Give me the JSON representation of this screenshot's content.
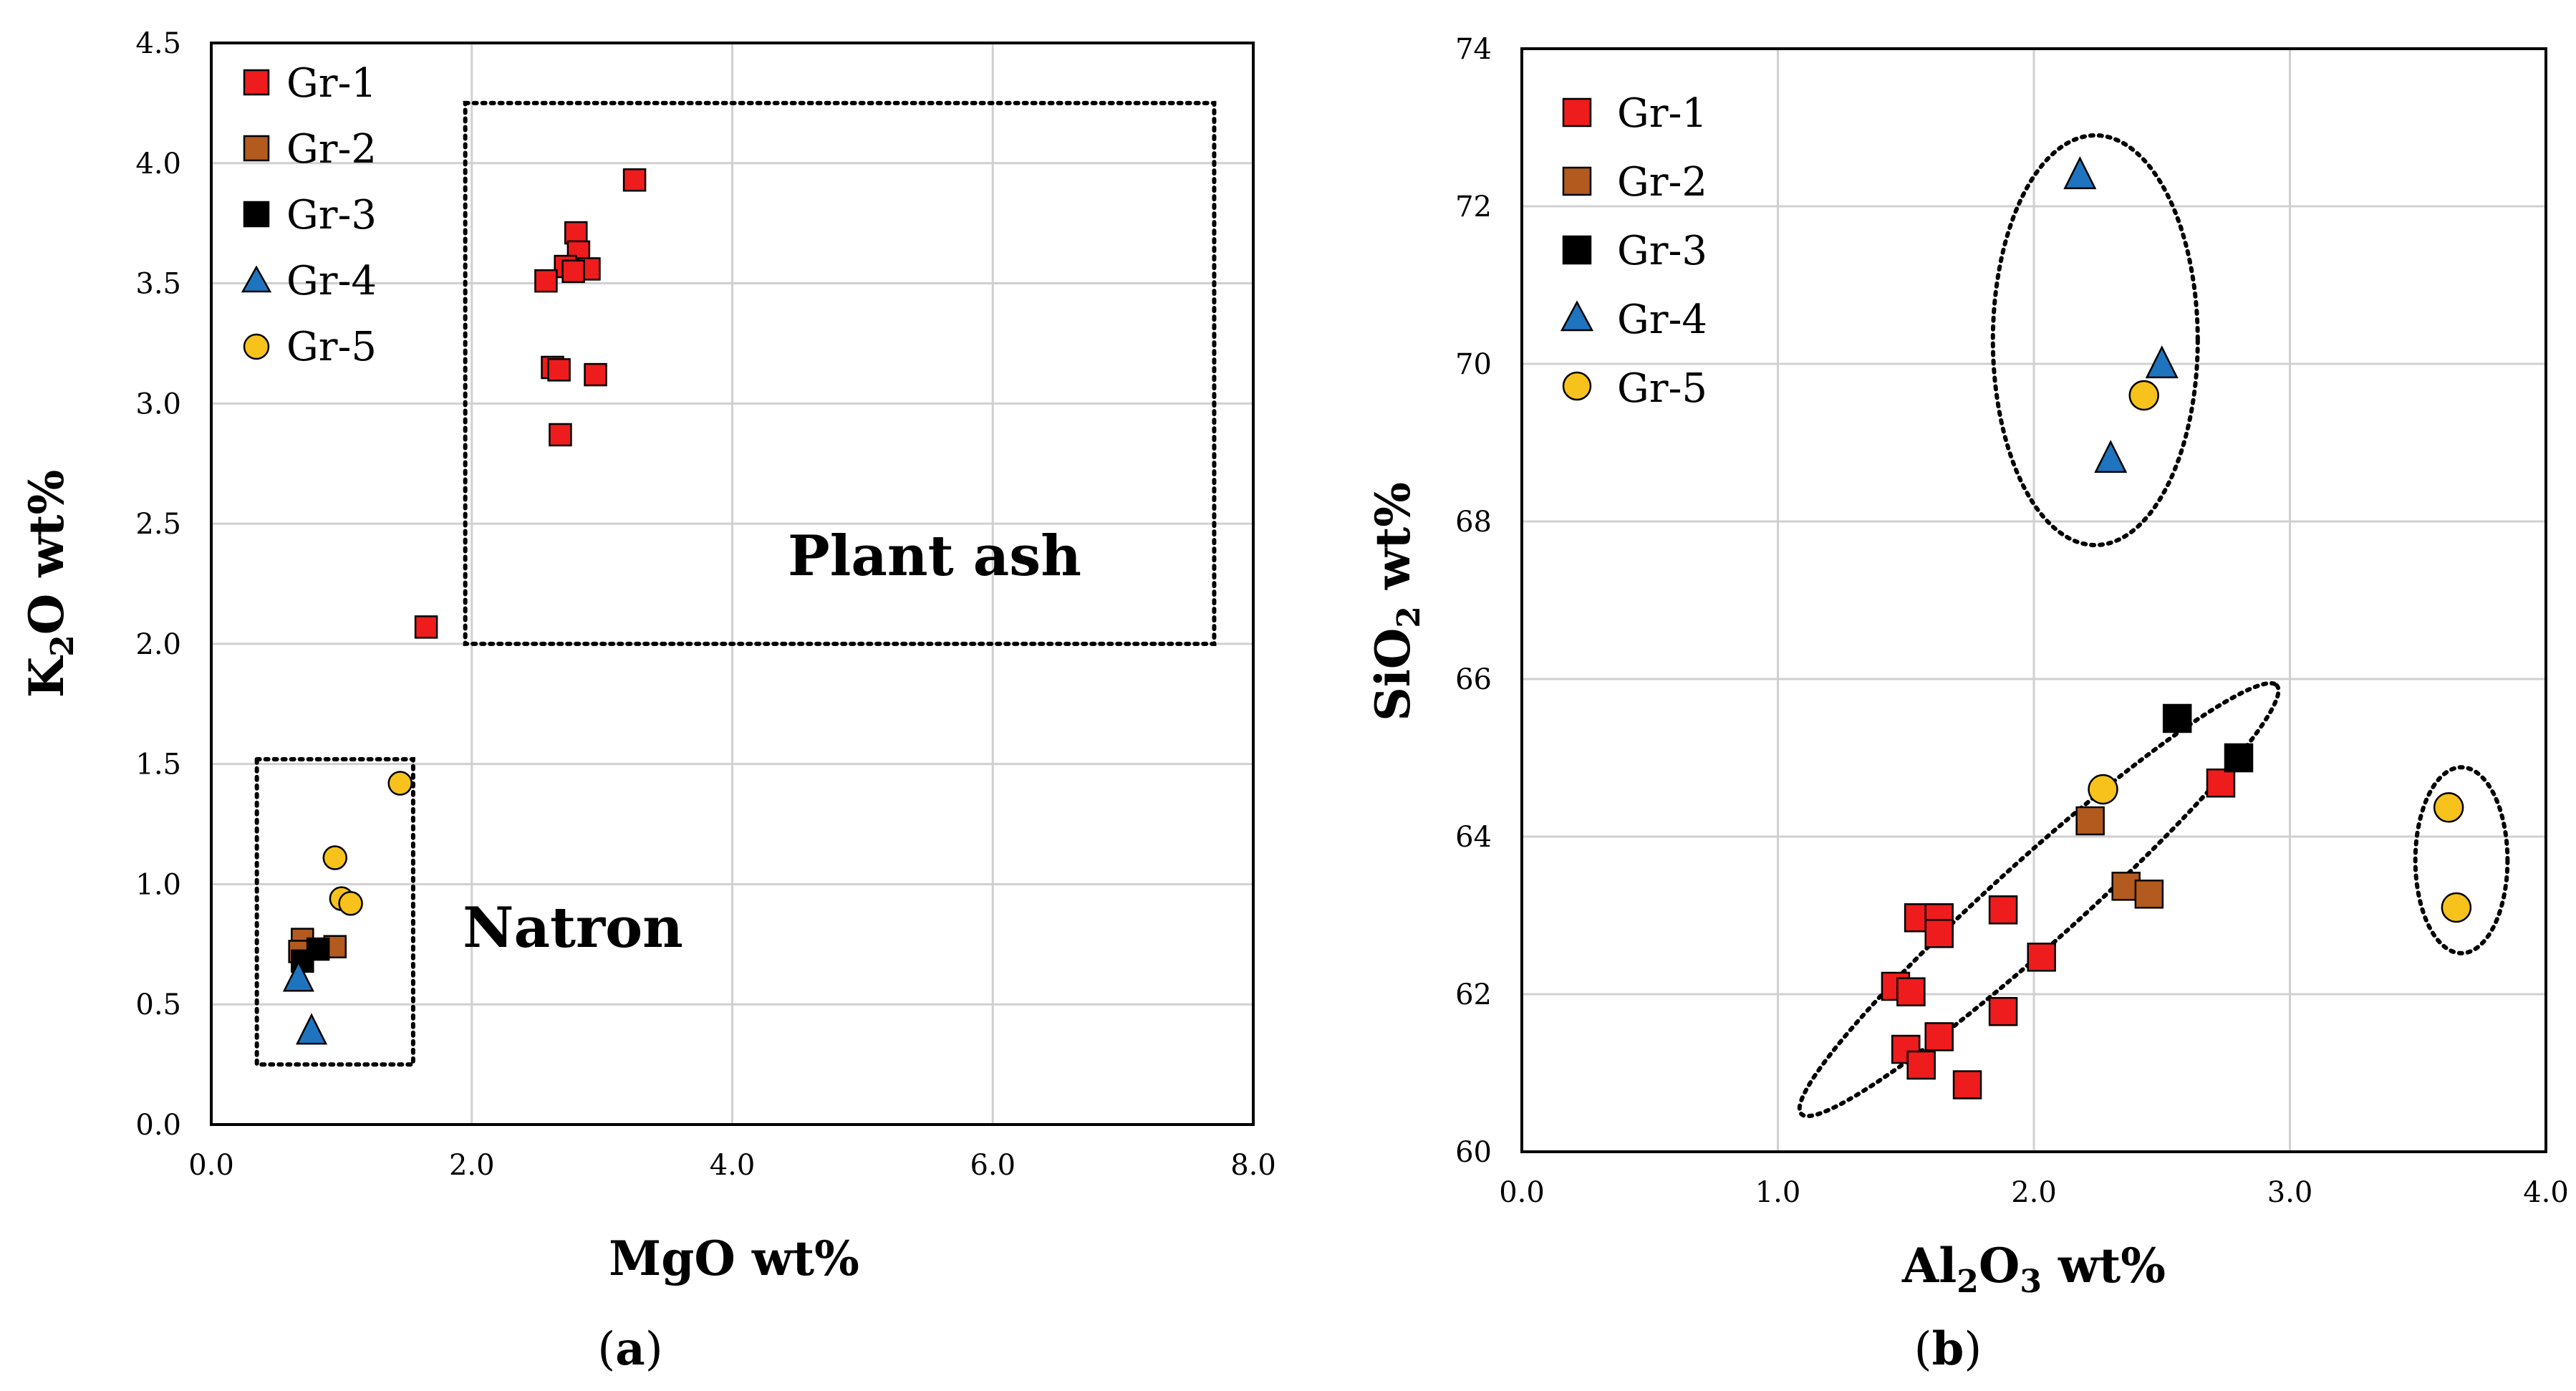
{
  "colors": {
    "Gr-1": "#ee1c1c",
    "Gr-2": "#b35a1f",
    "Gr-3": "#000000",
    "Gr-4": "#1f74bf",
    "Gr-5": "#f7c21b"
  },
  "legend_entries": [
    "Gr-1",
    "Gr-2",
    "Gr-3",
    "Gr-4",
    "Gr-5"
  ],
  "chart_data": [
    {
      "type": "scatter",
      "panel_label": "a",
      "xlabel": "MgO wt%",
      "ylabel": "K2O wt%",
      "xlim": [
        0,
        8
      ],
      "ylim": [
        0,
        4.5
      ],
      "xticks": [
        "0.0",
        "2.0",
        "4.0",
        "6.0",
        "8.0"
      ],
      "yticks": [
        "0.0",
        "0.5",
        "1.0",
        "1.5",
        "2.0",
        "2.5",
        "3.0",
        "3.5",
        "4.0",
        "4.5"
      ],
      "xtick_values": [
        0,
        2,
        4,
        6,
        8
      ],
      "ytick_values": [
        0,
        0.5,
        1,
        1.5,
        2,
        2.5,
        3,
        3.5,
        4,
        4.5
      ],
      "annotations": [
        {
          "text": "Plant ash",
          "x": 5.5,
          "y": 2.35
        },
        {
          "text": "Natron",
          "x": 2.8,
          "y": 0.75
        }
      ],
      "regions": [
        {
          "label": "Plant ash",
          "x0": 1.95,
          "x1": 7.7,
          "y0": 2.0,
          "y1": 4.25
        },
        {
          "label": "Natron",
          "x0": 0.35,
          "x1": 1.55,
          "y0": 0.25,
          "y1": 1.52
        }
      ],
      "series": [
        {
          "name": "Gr-1",
          "marker": "square",
          "points": [
            [
              3.25,
              3.93
            ],
            [
              2.8,
              3.71
            ],
            [
              2.82,
              3.63
            ],
            [
              2.72,
              3.57
            ],
            [
              2.9,
              3.56
            ],
            [
              2.78,
              3.55
            ],
            [
              2.57,
              3.51
            ],
            [
              2.62,
              3.15
            ],
            [
              2.67,
              3.14
            ],
            [
              2.95,
              3.12
            ],
            [
              2.68,
              2.87
            ],
            [
              1.65,
              2.07
            ]
          ]
        },
        {
          "name": "Gr-2",
          "marker": "square",
          "points": [
            [
              0.7,
              0.77
            ],
            [
              0.95,
              0.74
            ],
            [
              0.68,
              0.72
            ]
          ]
        },
        {
          "name": "Gr-3",
          "marker": "square",
          "points": [
            [
              0.82,
              0.73
            ],
            [
              0.7,
              0.68
            ]
          ]
        },
        {
          "name": "Gr-4",
          "marker": "triangle",
          "points": [
            [
              0.67,
              0.61
            ],
            [
              0.77,
              0.39
            ]
          ]
        },
        {
          "name": "Gr-5",
          "marker": "circle",
          "points": [
            [
              1.45,
              1.42
            ],
            [
              0.95,
              1.11
            ],
            [
              1.0,
              0.94
            ],
            [
              1.07,
              0.92
            ]
          ]
        }
      ]
    },
    {
      "type": "scatter",
      "panel_label": "b",
      "xlabel": "Al2O3 wt%",
      "ylabel": "SiO2 wt%",
      "xlim": [
        0,
        4
      ],
      "ylim": [
        60,
        74
      ],
      "xticks": [
        "0.0",
        "1.0",
        "2.0",
        "3.0",
        "4.0"
      ],
      "yticks": [
        "60",
        "62",
        "64",
        "66",
        "68",
        "70",
        "72",
        "74"
      ],
      "xtick_values": [
        0,
        1,
        2,
        3,
        4
      ],
      "ytick_values": [
        60,
        62,
        64,
        66,
        68,
        70,
        72,
        74
      ],
      "regions": [
        {
          "shape": "ellipse",
          "cx": 2.24,
          "cy": 70.3,
          "rx": 0.4,
          "ry": 2.6,
          "angle": 0
        },
        {
          "shape": "ellipse",
          "cx": 2.02,
          "cy": 63.2,
          "rx": 1.25,
          "ry": 0.53,
          "angle": -42
        },
        {
          "shape": "ellipse",
          "cx": 3.67,
          "cy": 63.7,
          "rx": 0.18,
          "ry": 1.18,
          "angle": 0
        }
      ],
      "series": [
        {
          "name": "Gr-1",
          "marker": "square",
          "points": [
            [
              2.73,
              64.68
            ],
            [
              1.88,
              63.07
            ],
            [
              1.55,
              62.97
            ],
            [
              1.63,
              62.97
            ],
            [
              1.63,
              62.77
            ],
            [
              2.03,
              62.47
            ],
            [
              1.46,
              62.1
            ],
            [
              1.52,
              62.03
            ],
            [
              1.88,
              61.78
            ],
            [
              1.63,
              61.46
            ],
            [
              1.5,
              61.3
            ],
            [
              1.56,
              61.1
            ],
            [
              1.74,
              60.85
            ]
          ]
        },
        {
          "name": "Gr-2",
          "marker": "square",
          "points": [
            [
              2.22,
              64.2
            ],
            [
              2.36,
              63.37
            ],
            [
              2.45,
              63.27
            ]
          ]
        },
        {
          "name": "Gr-3",
          "marker": "square",
          "points": [
            [
              2.56,
              65.5
            ],
            [
              2.8,
              65.0
            ]
          ]
        },
        {
          "name": "Gr-4",
          "marker": "triangle",
          "points": [
            [
              2.18,
              72.4
            ],
            [
              2.5,
              70.0
            ],
            [
              2.3,
              68.8
            ]
          ]
        },
        {
          "name": "Gr-5",
          "marker": "circle",
          "points": [
            [
              2.43,
              69.6
            ],
            [
              2.27,
              64.6
            ],
            [
              3.62,
              64.37
            ],
            [
              3.65,
              63.1
            ]
          ]
        }
      ]
    }
  ]
}
